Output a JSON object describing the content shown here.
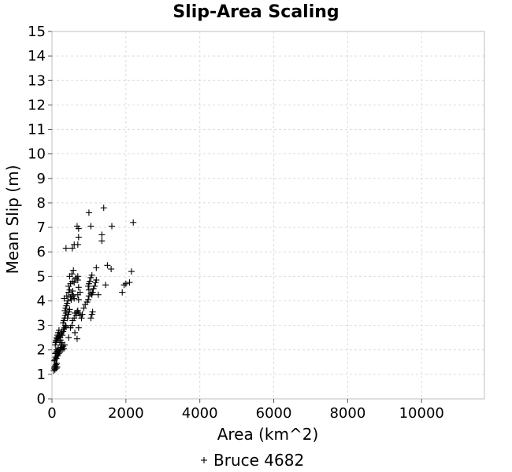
{
  "chart_data": {
    "type": "scatter",
    "title": "Slip-Area Scaling",
    "xlabel": "Area (km^2)",
    "ylabel": "Mean Slip (m)",
    "xlim": [
      0,
      11700
    ],
    "ylim": [
      0,
      15
    ],
    "x_ticks": [
      "0",
      "2000",
      "4000",
      "6000",
      "8000",
      "10000"
    ],
    "y_ticks": [
      "0",
      "1",
      "2",
      "3",
      "4",
      "5",
      "6",
      "7",
      "8",
      "9",
      "10",
      "11",
      "12",
      "13",
      "14",
      "15"
    ],
    "grid": true,
    "legend_position": "bottom-center",
    "marker": "plus",
    "color": "#000000",
    "series": [
      {
        "name": "Bruce 4682",
        "points": [
          [
            50,
            1.15
          ],
          [
            60,
            1.25
          ],
          [
            70,
            1.3
          ],
          [
            80,
            1.2
          ],
          [
            90,
            1.35
          ],
          [
            100,
            1.3
          ],
          [
            110,
            1.4
          ],
          [
            120,
            1.25
          ],
          [
            130,
            1.45
          ],
          [
            140,
            1.3
          ],
          [
            60,
            1.55
          ],
          [
            80,
            1.6
          ],
          [
            100,
            1.7
          ],
          [
            120,
            1.65
          ],
          [
            140,
            1.75
          ],
          [
            90,
            1.85
          ],
          [
            110,
            1.9
          ],
          [
            130,
            2.0
          ],
          [
            150,
            1.95
          ],
          [
            170,
            2.05
          ],
          [
            160,
            1.8
          ],
          [
            180,
            1.85
          ],
          [
            200,
            1.9
          ],
          [
            220,
            2.0
          ],
          [
            240,
            2.05
          ],
          [
            260,
            2.1
          ],
          [
            280,
            2.0
          ],
          [
            300,
            2.15
          ],
          [
            320,
            2.05
          ],
          [
            340,
            2.2
          ],
          [
            100,
            2.3
          ],
          [
            120,
            2.4
          ],
          [
            140,
            2.45
          ],
          [
            160,
            2.5
          ],
          [
            180,
            2.55
          ],
          [
            200,
            2.6
          ],
          [
            220,
            2.5
          ],
          [
            240,
            2.65
          ],
          [
            260,
            2.7
          ],
          [
            280,
            2.6
          ],
          [
            90,
            2.2
          ],
          [
            110,
            2.35
          ],
          [
            130,
            2.5
          ],
          [
            150,
            2.6
          ],
          [
            170,
            2.7
          ],
          [
            190,
            2.8
          ],
          [
            210,
            2.3
          ],
          [
            230,
            2.4
          ],
          [
            250,
            2.2
          ],
          [
            270,
            2.3
          ],
          [
            300,
            2.75
          ],
          [
            320,
            2.85
          ],
          [
            340,
            2.9
          ],
          [
            360,
            3.0
          ],
          [
            380,
            2.95
          ],
          [
            300,
            3.1
          ],
          [
            320,
            3.2
          ],
          [
            340,
            3.3
          ],
          [
            360,
            3.4
          ],
          [
            380,
            3.5
          ],
          [
            350,
            3.6
          ],
          [
            370,
            3.7
          ],
          [
            390,
            3.8
          ],
          [
            410,
            3.9
          ],
          [
            430,
            4.0
          ],
          [
            330,
            4.1
          ],
          [
            420,
            3.3
          ],
          [
            440,
            3.45
          ],
          [
            460,
            3.55
          ],
          [
            480,
            3.65
          ],
          [
            400,
            4.2
          ],
          [
            450,
            4.35
          ],
          [
            480,
            4.45
          ],
          [
            500,
            4.15
          ],
          [
            520,
            4.05
          ],
          [
            540,
            4.25
          ],
          [
            560,
            4.4
          ],
          [
            580,
            4.2
          ],
          [
            600,
            4.1
          ],
          [
            620,
            3.5
          ],
          [
            450,
            2.5
          ],
          [
            500,
            2.9
          ],
          [
            540,
            3.0
          ],
          [
            560,
            3.2
          ],
          [
            600,
            3.3
          ],
          [
            650,
            3.4
          ],
          [
            680,
            3.55
          ],
          [
            700,
            3.6
          ],
          [
            720,
            3.5
          ],
          [
            760,
            3.4
          ],
          [
            620,
            2.7
          ],
          [
            680,
            2.45
          ],
          [
            720,
            2.9
          ],
          [
            800,
            3.3
          ],
          [
            820,
            3.45
          ],
          [
            860,
            3.7
          ],
          [
            900,
            3.85
          ],
          [
            950,
            3.95
          ],
          [
            980,
            4.05
          ],
          [
            1000,
            4.2
          ],
          [
            450,
            4.6
          ],
          [
            500,
            4.7
          ],
          [
            550,
            4.8
          ],
          [
            600,
            4.75
          ],
          [
            650,
            4.9
          ],
          [
            700,
            5.0
          ],
          [
            720,
            4.55
          ],
          [
            760,
            4.35
          ],
          [
            700,
            4.25
          ],
          [
            720,
            4.05
          ],
          [
            480,
            5.0
          ],
          [
            540,
            5.1
          ],
          [
            580,
            5.25
          ],
          [
            650,
            4.95
          ],
          [
            700,
            4.85
          ],
          [
            980,
            4.6
          ],
          [
            1000,
            4.7
          ],
          [
            1020,
            4.8
          ],
          [
            1050,
            4.95
          ],
          [
            1080,
            5.05
          ],
          [
            1000,
            4.45
          ],
          [
            1050,
            4.3
          ],
          [
            1080,
            4.25
          ],
          [
            1100,
            4.35
          ],
          [
            1120,
            4.5
          ],
          [
            1150,
            4.6
          ],
          [
            1180,
            4.75
          ],
          [
            1200,
            4.85
          ],
          [
            1250,
            4.25
          ],
          [
            1100,
            3.55
          ],
          [
            1050,
            3.3
          ],
          [
            1080,
            3.45
          ],
          [
            1200,
            5.35
          ],
          [
            1500,
            5.45
          ],
          [
            1600,
            5.3
          ],
          [
            1450,
            4.65
          ],
          [
            1900,
            4.35
          ],
          [
            1950,
            4.65
          ],
          [
            2000,
            4.7
          ],
          [
            2100,
            4.75
          ],
          [
            2150,
            5.2
          ],
          [
            380,
            6.15
          ],
          [
            550,
            6.15
          ],
          [
            600,
            6.3
          ],
          [
            700,
            6.3
          ],
          [
            720,
            6.6
          ],
          [
            680,
            7.05
          ],
          [
            720,
            6.95
          ],
          [
            1000,
            7.6
          ],
          [
            1050,
            7.05
          ],
          [
            1350,
            6.45
          ],
          [
            1350,
            6.7
          ],
          [
            1400,
            7.8
          ],
          [
            1620,
            7.05
          ],
          [
            2200,
            7.2
          ]
        ]
      }
    ]
  }
}
